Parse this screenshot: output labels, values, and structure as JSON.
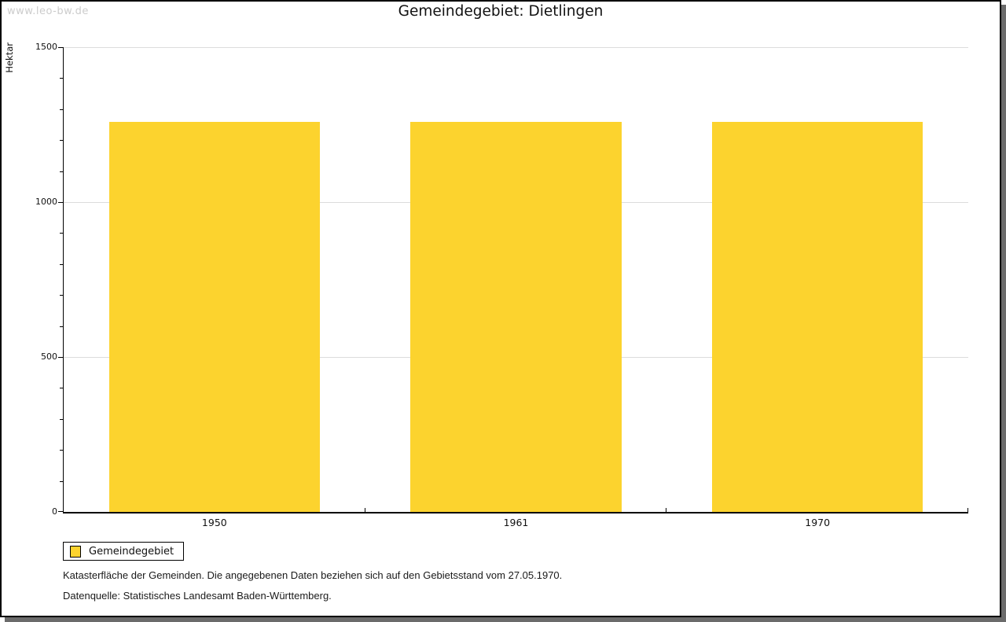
{
  "watermark": "www.leo-bw.de",
  "title": "Gemeindegebiet: Dietlingen",
  "ylabel": "Hektar",
  "legend": {
    "label": "Gemeindegebiet",
    "swatch_color": "#FCD32E"
  },
  "notes": [
    "Katasterfläche der Gemeinden. Die angegebenen Daten beziehen sich auf den Gebietsstand vom 27.05.1970.",
    "Datenquelle: Statistisches Landesamt Baden-Württemberg."
  ],
  "colors": {
    "bar": "#FCD32E",
    "grid": "#dcdcdc",
    "axis": "#000000",
    "watermark": "#cccccc",
    "shadow": "#6b6b6b",
    "text": "#1a1a1a"
  },
  "chart_data": {
    "type": "bar",
    "categories": [
      "1950",
      "1961",
      "1970"
    ],
    "series": [
      {
        "name": "Gemeindegebiet",
        "values": [
          1259,
          1259,
          1259
        ],
        "color": "#FCD32E"
      }
    ],
    "title": "Gemeindegebiet: Dietlingen",
    "xlabel": "",
    "ylabel": "Hektar",
    "ylim": [
      0,
      1500
    ],
    "ytick_step": 500,
    "ytick_labels": [
      "0",
      "500",
      "1000",
      "1500"
    ],
    "minor_tick_step": 100,
    "grid": "horizontal-major",
    "legend_position": "bottom-left",
    "bar_width_ratio": 0.7
  }
}
